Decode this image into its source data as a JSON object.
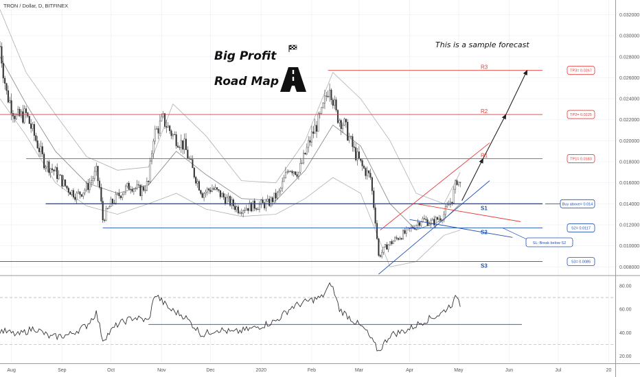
{
  "header": {
    "symbol": "TRON / Dollar, D, BITFINEX"
  },
  "annotations": {
    "title_line1": "Big Profit",
    "title_line2": "Road Map",
    "sample_note": "This is a sample forecast",
    "flag_icon": "checkered-flag-icon",
    "road_icon": "road-icon"
  },
  "colors": {
    "up": "#26a69a",
    "down": "#ef5350",
    "candle": "#333333",
    "resistance": "#e53935",
    "support": "#1e4fb4",
    "bb": "#b0b0b0",
    "rsi": "#333333"
  },
  "levels": [
    {
      "label": "R3",
      "price": 0.0267,
      "color": "#e53935",
      "start": "2020-02-11",
      "box": "TP3= 0.0267"
    },
    {
      "label": "R2",
      "price": 0.0225,
      "color": "#e53935",
      "start": "2019-07-25",
      "box": "TP2= 0.0225"
    },
    {
      "label": "R1",
      "price": 0.0183,
      "color": "#e53935",
      "start": "2019-08-10",
      "box": "TP1= 0.0183"
    },
    {
      "label": "S1",
      "price": 0.014,
      "color": "#1e4fb4",
      "start": "2019-08-22",
      "box": "Buy above= 0.014"
    },
    {
      "label": "S2",
      "price": 0.0117,
      "color": "#1e4fb4",
      "start": "2019-09-26",
      "box": "S2= 0.0117"
    },
    {
      "label": "S3",
      "price": 0.0085,
      "color": "#1e4fb4",
      "start": "2019-07-25",
      "box": "S3= 0.0085"
    }
  ],
  "sl_note": "SL: Break below S2",
  "chart_data": {
    "type": "candlestick",
    "symbol": "TRON / Dollar",
    "timeframe": "D",
    "exchange": "BITFINEX",
    "xlim": [
      "2019-07-25",
      "2020-08-05"
    ],
    "ylim": [
      0.0073,
      0.0334
    ],
    "x_ticks": [
      "Aug",
      "Sep",
      "Oct",
      "Nov",
      "Dec",
      "2020",
      "Feb",
      "Mar",
      "Apr",
      "May",
      "Jun",
      "Jul",
      "20"
    ],
    "y_ticks": [
      "0.032000",
      "0.030000",
      "0.028000",
      "0.026000",
      "0.024000",
      "0.022000",
      "0.020000",
      "0.018000",
      "0.016000",
      "0.014000",
      "0.012000",
      "0.010000",
      "0.008000"
    ],
    "close_path": [
      [
        "2019-07-25",
        0.029
      ],
      [
        "2019-07-29",
        0.0245
      ],
      [
        "2019-08-04",
        0.0222
      ],
      [
        "2019-08-10",
        0.0225
      ],
      [
        "2019-08-15",
        0.0205
      ],
      [
        "2019-08-21",
        0.018
      ],
      [
        "2019-08-28",
        0.017
      ],
      [
        "2019-09-04",
        0.0155
      ],
      [
        "2019-09-10",
        0.0148
      ],
      [
        "2019-09-16",
        0.0155
      ],
      [
        "2019-09-22",
        0.017
      ],
      [
        "2019-09-24",
        0.0155
      ],
      [
        "2019-09-26",
        0.0125
      ],
      [
        "2019-10-01",
        0.014
      ],
      [
        "2019-10-07",
        0.015
      ],
      [
        "2019-10-13",
        0.0158
      ],
      [
        "2019-10-19",
        0.0152
      ],
      [
        "2019-10-24",
        0.016
      ],
      [
        "2019-10-27",
        0.0205
      ],
      [
        "2019-11-02",
        0.022
      ],
      [
        "2019-11-08",
        0.0205
      ],
      [
        "2019-11-15",
        0.0195
      ],
      [
        "2019-11-20",
        0.0172
      ],
      [
        "2019-11-26",
        0.015
      ],
      [
        "2019-12-02",
        0.0155
      ],
      [
        "2019-12-10",
        0.0145
      ],
      [
        "2019-12-18",
        0.0135
      ],
      [
        "2019-12-27",
        0.0138
      ],
      [
        "2020-01-05",
        0.014
      ],
      [
        "2020-01-12",
        0.015
      ],
      [
        "2020-01-18",
        0.0175
      ],
      [
        "2020-01-24",
        0.017
      ],
      [
        "2020-02-01",
        0.0205
      ],
      [
        "2020-02-07",
        0.0225
      ],
      [
        "2020-02-12",
        0.0255
      ],
      [
        "2020-02-16",
        0.0225
      ],
      [
        "2020-02-21",
        0.0215
      ],
      [
        "2020-02-27",
        0.019
      ],
      [
        "2020-03-03",
        0.0175
      ],
      [
        "2020-03-08",
        0.0165
      ],
      [
        "2020-03-11",
        0.0125
      ],
      [
        "2020-03-13",
        0.009
      ],
      [
        "2020-03-18",
        0.01
      ],
      [
        "2020-03-25",
        0.0108
      ],
      [
        "2020-04-01",
        0.0115
      ],
      [
        "2020-04-08",
        0.0125
      ],
      [
        "2020-04-15",
        0.0122
      ],
      [
        "2020-04-22",
        0.013
      ],
      [
        "2020-04-27",
        0.0145
      ],
      [
        "2020-04-30",
        0.0163
      ],
      [
        "2020-05-02",
        0.0158
      ]
    ],
    "moving_average_path": [
      [
        "2019-07-25",
        0.028
      ],
      [
        "2019-08-10",
        0.0235
      ],
      [
        "2019-08-28",
        0.019
      ],
      [
        "2019-09-16",
        0.016
      ],
      [
        "2019-10-05",
        0.015
      ],
      [
        "2019-10-24",
        0.0158
      ],
      [
        "2019-11-10",
        0.019
      ],
      [
        "2019-11-28",
        0.0168
      ],
      [
        "2019-12-20",
        0.0145
      ],
      [
        "2020-01-10",
        0.0143
      ],
      [
        "2020-01-28",
        0.0172
      ],
      [
        "2020-02-14",
        0.0215
      ],
      [
        "2020-03-02",
        0.0195
      ],
      [
        "2020-03-20",
        0.014
      ],
      [
        "2020-04-05",
        0.0115
      ],
      [
        "2020-04-22",
        0.0125
      ],
      [
        "2020-05-02",
        0.014
      ]
    ],
    "bollinger_upper_path": [
      [
        "2019-07-25",
        0.0325
      ],
      [
        "2019-08-10",
        0.0265
      ],
      [
        "2019-08-28",
        0.0225
      ],
      [
        "2019-09-16",
        0.0185
      ],
      [
        "2019-10-05",
        0.0172
      ],
      [
        "2019-10-24",
        0.0175
      ],
      [
        "2019-11-08",
        0.0235
      ],
      [
        "2019-11-28",
        0.0205
      ],
      [
        "2019-12-20",
        0.0162
      ],
      [
        "2020-01-10",
        0.016
      ],
      [
        "2020-01-28",
        0.02
      ],
      [
        "2020-02-14",
        0.0265
      ],
      [
        "2020-03-02",
        0.024
      ],
      [
        "2020-03-20",
        0.02
      ],
      [
        "2020-04-05",
        0.015
      ],
      [
        "2020-04-22",
        0.014
      ],
      [
        "2020-05-02",
        0.017
      ]
    ],
    "bollinger_lower_path": [
      [
        "2019-07-25",
        0.024
      ],
      [
        "2019-08-10",
        0.0205
      ],
      [
        "2019-08-28",
        0.016
      ],
      [
        "2019-09-16",
        0.0138
      ],
      [
        "2019-10-05",
        0.013
      ],
      [
        "2019-10-24",
        0.014
      ],
      [
        "2019-11-10",
        0.015
      ],
      [
        "2019-11-28",
        0.0135
      ],
      [
        "2019-12-20",
        0.0128
      ],
      [
        "2020-01-10",
        0.013
      ],
      [
        "2020-01-28",
        0.0145
      ],
      [
        "2020-02-14",
        0.0165
      ],
      [
        "2020-03-02",
        0.015
      ],
      [
        "2020-03-20",
        0.008
      ],
      [
        "2020-04-05",
        0.0085
      ],
      [
        "2020-04-22",
        0.011
      ],
      [
        "2020-05-02",
        0.0115
      ]
    ],
    "trendlines": [
      {
        "name": "channel-top",
        "color": "#e53935",
        "points": [
          [
            "2020-03-14",
            0.0115
          ],
          [
            "2020-05-20",
            0.0198
          ]
        ]
      },
      {
        "name": "channel-bottom",
        "color": "#1e4fb4",
        "points": [
          [
            "2020-03-13",
            0.0073
          ],
          [
            "2020-05-20",
            0.0162
          ]
        ]
      },
      {
        "name": "wedge-top",
        "color": "#e53935",
        "points": [
          [
            "2020-04-05",
            0.014
          ],
          [
            "2020-06-08",
            0.0123
          ]
        ]
      },
      {
        "name": "wedge-bottom",
        "color": "#1e4fb4",
        "points": [
          [
            "2020-04-01",
            0.0125
          ],
          [
            "2020-06-03",
            0.0108
          ]
        ]
      }
    ],
    "forecast_path": [
      [
        "2020-05-03",
        0.0143
      ],
      [
        "2020-05-16",
        0.0183
      ],
      [
        "2020-05-30",
        0.0225
      ],
      [
        "2020-06-12",
        0.0267
      ]
    ],
    "rsi": {
      "ylim": [
        15,
        87
      ],
      "y_ticks": [
        "80.00",
        "60.00",
        "40.00",
        "20.00"
      ],
      "reference_levels": [
        70,
        30
      ],
      "trendline_value": 47,
      "path": [
        [
          "2019-07-25",
          42
        ],
        [
          "2019-08-05",
          38
        ],
        [
          "2019-08-15",
          44
        ],
        [
          "2019-08-25",
          36
        ],
        [
          "2019-09-05",
          38
        ],
        [
          "2019-09-16",
          46
        ],
        [
          "2019-09-22",
          57
        ],
        [
          "2019-09-26",
          34
        ],
        [
          "2019-10-05",
          47
        ],
        [
          "2019-10-15",
          53
        ],
        [
          "2019-10-24",
          50
        ],
        [
          "2019-10-28",
          73
        ],
        [
          "2019-11-06",
          60
        ],
        [
          "2019-11-15",
          54
        ],
        [
          "2019-11-26",
          38
        ],
        [
          "2019-12-05",
          43
        ],
        [
          "2019-12-15",
          40
        ],
        [
          "2019-12-28",
          44
        ],
        [
          "2020-01-10",
          50
        ],
        [
          "2020-01-20",
          62
        ],
        [
          "2020-02-01",
          68
        ],
        [
          "2020-02-07",
          70
        ],
        [
          "2020-02-13",
          82
        ],
        [
          "2020-02-18",
          60
        ],
        [
          "2020-02-25",
          52
        ],
        [
          "2020-03-05",
          42
        ],
        [
          "2020-03-13",
          24
        ],
        [
          "2020-03-20",
          38
        ],
        [
          "2020-03-30",
          42
        ],
        [
          "2020-04-10",
          50
        ],
        [
          "2020-04-20",
          56
        ],
        [
          "2020-04-28",
          66
        ],
        [
          "2020-04-30",
          72
        ],
        [
          "2020-05-02",
          64
        ]
      ]
    }
  }
}
